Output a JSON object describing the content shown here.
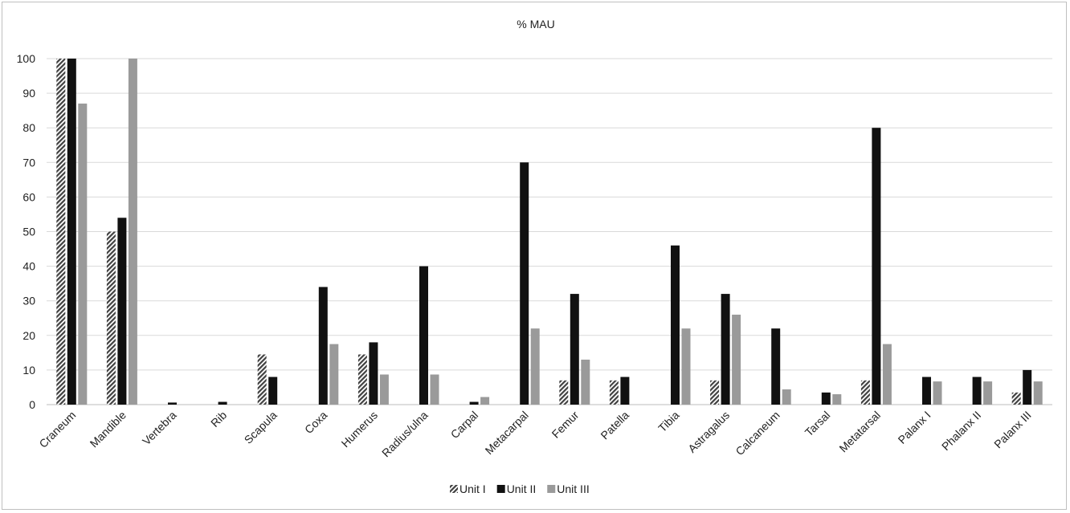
{
  "chart_data": {
    "type": "bar",
    "title": "% MAU",
    "xlabel": "",
    "ylabel": "",
    "ylim": [
      0,
      100
    ],
    "yticks": [
      0,
      10,
      20,
      30,
      40,
      50,
      60,
      70,
      80,
      90,
      100
    ],
    "grid": true,
    "legend_position": "bottom",
    "categories": [
      "Craneum",
      "Mandible",
      "Vertebra",
      "Rib",
      "Scapula",
      "Coxa",
      "Humerus",
      "Radius/ulna",
      "Carpal",
      "Metacarpal",
      "Femur",
      "Patella",
      "Tibia",
      "Astragalus",
      "Calcaneum",
      "Tarsal",
      "Metatarsal",
      "Palanx I",
      "Phalanx II",
      "Palanx III"
    ],
    "series": [
      {
        "name": "Unit I",
        "pattern": "hatched",
        "color": "#404040",
        "values": [
          100,
          50,
          0,
          0,
          14.5,
          0,
          14.5,
          0,
          0,
          0,
          7,
          7,
          0,
          7,
          0,
          0,
          7,
          0,
          0,
          3.5
        ]
      },
      {
        "name": "Unit II",
        "pattern": "solid",
        "color": "#111111",
        "values": [
          100,
          54,
          0.6,
          0.8,
          8,
          34,
          18,
          40,
          0.8,
          70,
          32,
          8,
          46,
          32,
          22,
          3.5,
          80,
          8,
          8,
          10
        ]
      },
      {
        "name": "Unit III",
        "pattern": "solid",
        "color": "#9a9a9a",
        "values": [
          87,
          100,
          0,
          0,
          0,
          17.5,
          8.7,
          8.7,
          2.2,
          22,
          13,
          0,
          22,
          26,
          4.4,
          3,
          17.5,
          6.7,
          6.7,
          6.7
        ]
      }
    ]
  }
}
